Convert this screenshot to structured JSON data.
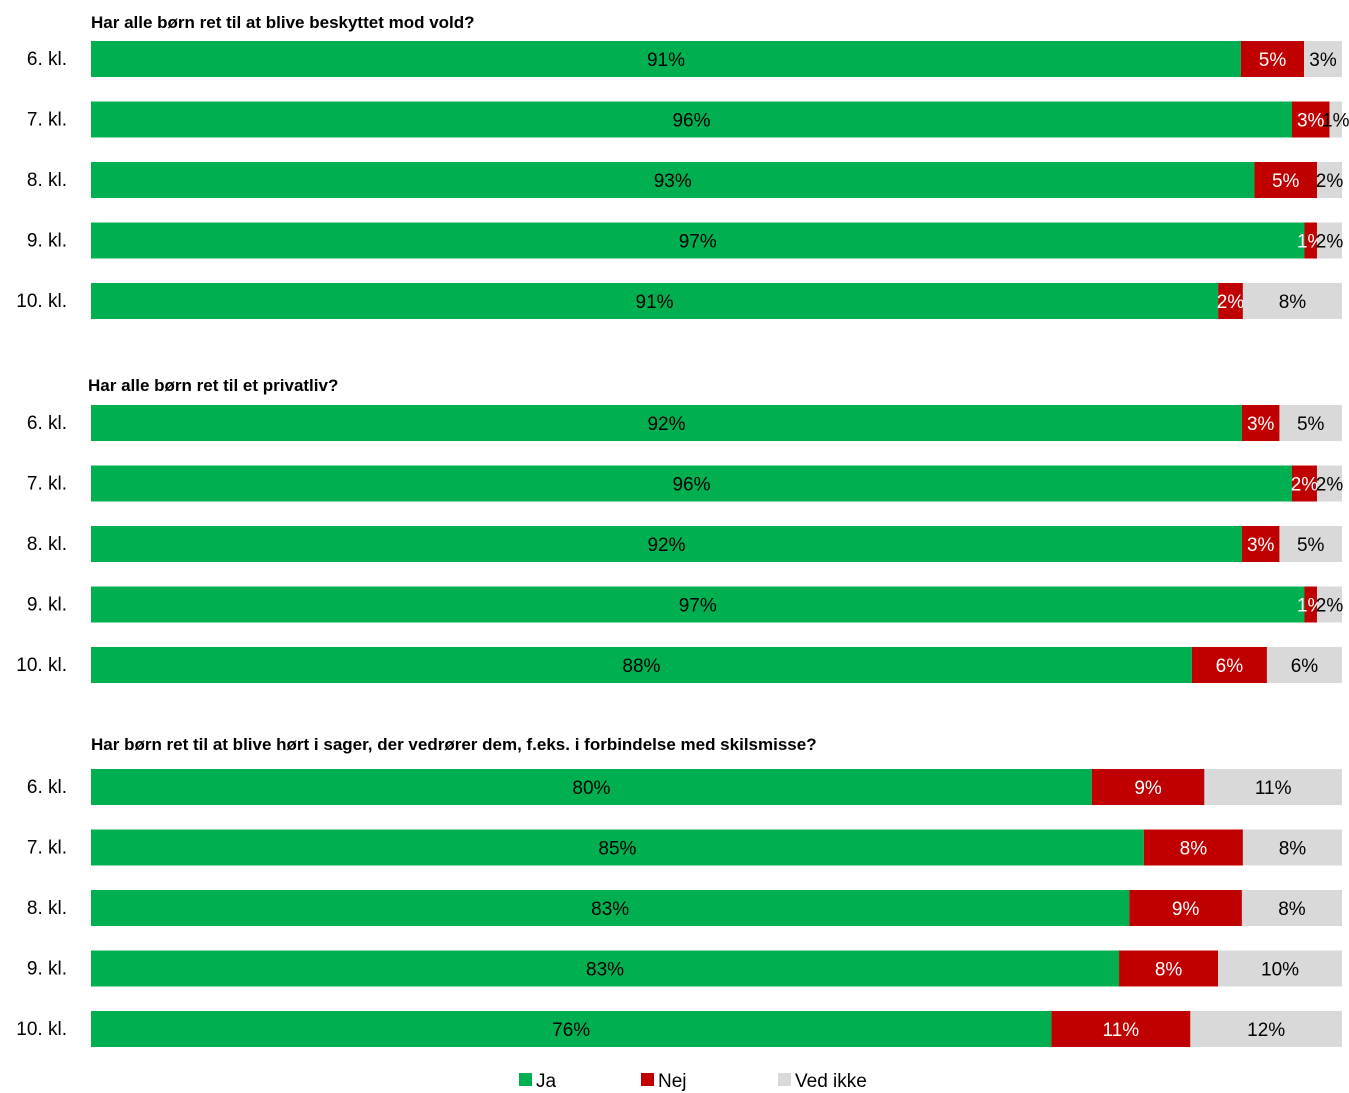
{
  "chart_data": {
    "type": "bar",
    "orientation": "horizontal",
    "stacked": true,
    "normalized": "100%",
    "legend": {
      "position": "bottom",
      "entries": [
        {
          "name": "Ja",
          "color": "#00B050"
        },
        {
          "name": "Nej",
          "color": "#C00000"
        },
        {
          "name": "Ved ikke",
          "color": "#D9D9D9"
        }
      ]
    },
    "panels": [
      {
        "title": "Har alle børn ret til at blive beskyttet mod vold?",
        "categories": [
          "6. kl.",
          "7. kl.",
          "8. kl.",
          "9. kl.",
          "10. kl."
        ],
        "series": [
          {
            "name": "Ja",
            "values": [
              91,
              96,
              93,
              97,
              91
            ],
            "labels": [
              "91%",
              "96%",
              "93%",
              "97%",
              "91%"
            ]
          },
          {
            "name": "Nej",
            "values": [
              5,
              3,
              5,
              1,
              2
            ],
            "labels": [
              "5%",
              "3%",
              "5%",
              "1%",
              "2%"
            ]
          },
          {
            "name": "Ved ikke",
            "values": [
              3,
              1,
              2,
              2,
              8
            ],
            "labels": [
              "3%",
              "1%",
              "2%",
              "2%",
              "8%"
            ]
          }
        ]
      },
      {
        "title": "Har alle børn ret til et privatliv?",
        "categories": [
          "6. kl.",
          "7. kl.",
          "8. kl.",
          "9. kl.",
          "10. kl."
        ],
        "series": [
          {
            "name": "Ja",
            "values": [
              92,
              96,
              92,
              97,
              88
            ],
            "labels": [
              "92%",
              "96%",
              "92%",
              "97%",
              "88%"
            ]
          },
          {
            "name": "Nej",
            "values": [
              3,
              2,
              3,
              1,
              6
            ],
            "labels": [
              "3%",
              "2%",
              "3%",
              "1%",
              "6%"
            ]
          },
          {
            "name": "Ved ikke",
            "values": [
              5,
              2,
              5,
              2,
              6
            ],
            "labels": [
              "5%",
              "2%",
              "5%",
              "2%",
              "6%"
            ]
          }
        ]
      },
      {
        "title": "Har børn ret til at blive hørt i sager, der vedrører dem, f.eks. i forbindelse med skilsmisse?",
        "categories": [
          "6. kl.",
          "7. kl.",
          "8. kl.",
          "9. kl.",
          "10. kl."
        ],
        "series": [
          {
            "name": "Ja",
            "values": [
              80,
              85,
              83,
              83,
              76
            ],
            "labels": [
              "80%",
              "85%",
              "83%",
              "83%",
              "76%"
            ]
          },
          {
            "name": "Nej",
            "values": [
              9,
              8,
              9,
              8,
              11
            ],
            "labels": [
              "9%",
              "8%",
              "9%",
              "8%",
              "11%"
            ]
          },
          {
            "name": "Ved ikke",
            "values": [
              11,
              8,
              8,
              10,
              12
            ],
            "labels": [
              "11%",
              "8%",
              "8%",
              "10%",
              "12%"
            ]
          }
        ]
      }
    ]
  }
}
